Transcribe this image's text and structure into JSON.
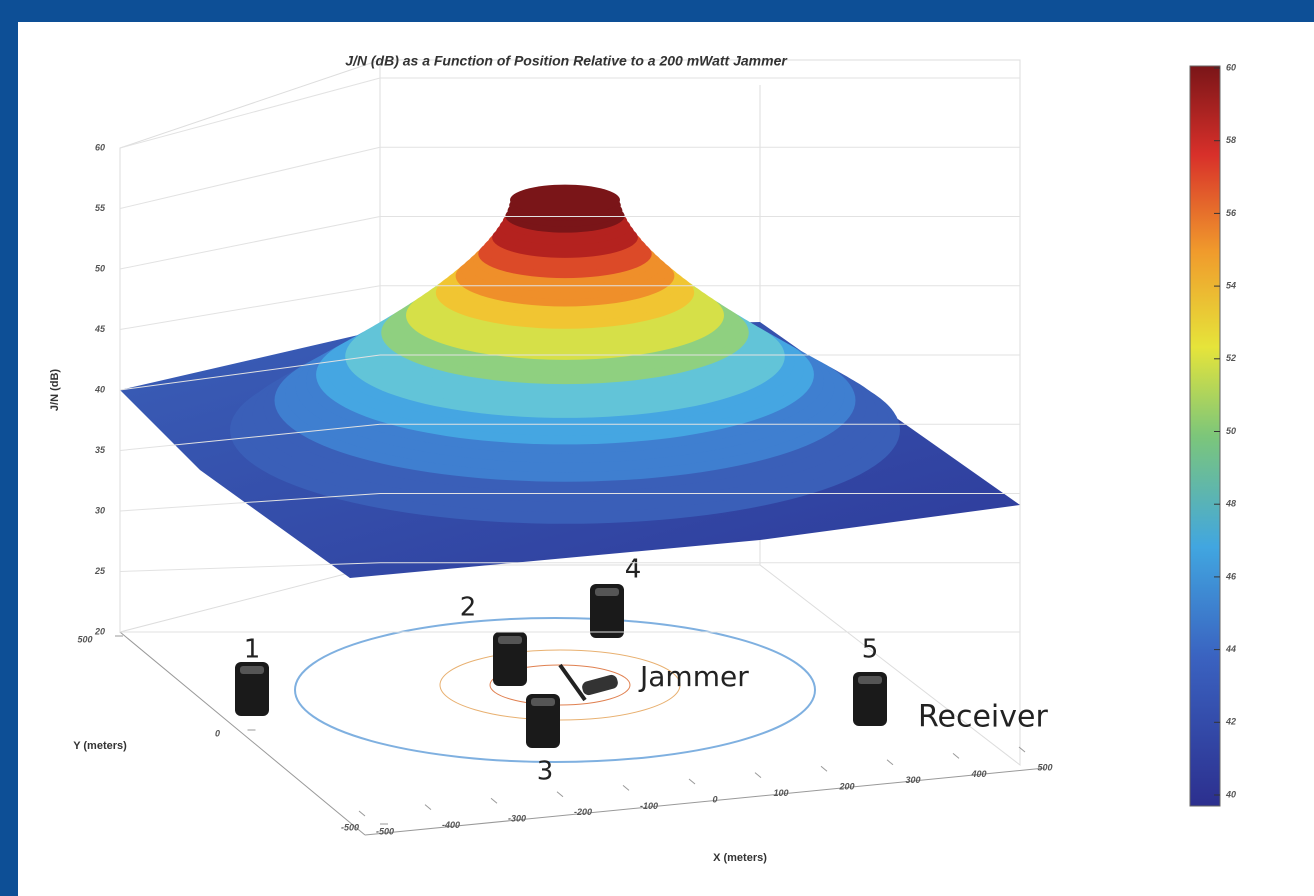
{
  "chart_data": {
    "type": "surface",
    "title": "J/N (dB) as a Function of Position Relative to a 200 mWatt Jammer",
    "xlabel": "X (meters)",
    "ylabel": "Y (meters)",
    "zlabel": "J/N (dB)",
    "xlim": [
      -500,
      500
    ],
    "xticks": [
      -500,
      -400,
      -300,
      -200,
      -100,
      0,
      100,
      200,
      300,
      400,
      500
    ],
    "ylim": [
      -500,
      500
    ],
    "yticks": [
      -500,
      0,
      500
    ],
    "zlim": [
      20,
      60
    ],
    "zticks": [
      20,
      25,
      30,
      35,
      40,
      45,
      50,
      55,
      60
    ],
    "colorbar": {
      "clim": [
        40,
        60
      ],
      "ticks": [
        40,
        42,
        44,
        46,
        48,
        50,
        52,
        54,
        56,
        58,
        60
      ]
    },
    "grid": true,
    "annotations": {
      "receivers": [
        "1",
        "2",
        "3",
        "4",
        "5"
      ],
      "jammer": "Jammer",
      "receiver": "Receiver"
    }
  }
}
